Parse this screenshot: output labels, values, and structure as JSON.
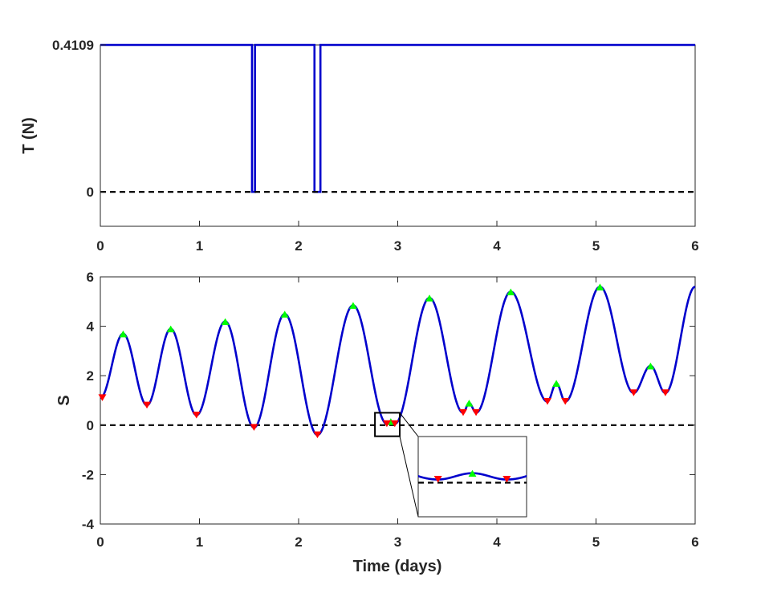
{
  "chart_data": [
    {
      "type": "line",
      "ylabel": "T (N)",
      "xlim": [
        0,
        6
      ],
      "ylim": [
        -0.0962,
        0.4109
      ],
      "xticks": [
        "0",
        "1",
        "2",
        "3",
        "4",
        "5",
        "6"
      ],
      "yticks": [
        {
          "value": 0,
          "label": "0"
        },
        {
          "value": 0.4109,
          "label": "0.4109"
        }
      ],
      "series": [
        {
          "style": "solid",
          "color": "#0000cc",
          "x": [
            0,
            1.53,
            1.53,
            1.56,
            1.56,
            2.16,
            2.16,
            2.22,
            2.22,
            6
          ],
          "y": [
            0.4109,
            0.4109,
            0,
            0,
            0.4109,
            0.4109,
            0,
            0,
            0.4109,
            0.4109
          ]
        },
        {
          "style": "dashed",
          "color": "#000000",
          "x": [
            0,
            6
          ],
          "y": [
            0,
            0
          ]
        }
      ]
    },
    {
      "type": "line",
      "xlabel": "Time (days)",
      "ylabel": "S",
      "xlim": [
        0,
        6
      ],
      "ylim": [
        -4,
        6
      ],
      "xticks": [
        "0",
        "1",
        "2",
        "3",
        "4",
        "5",
        "6"
      ],
      "yticks": [
        "-4",
        "-2",
        "0",
        "2",
        "4",
        "6"
      ],
      "curve_color": "#0000cc",
      "maxima_color": "#00ff00",
      "minima_color": "#ff0000",
      "curve_points": [
        [
          0,
          1.1
        ],
        [
          0.23,
          3.7
        ],
        [
          0.47,
          0.8
        ],
        [
          0.71,
          3.9
        ],
        [
          0.97,
          0.4
        ],
        [
          1.26,
          4.2
        ],
        [
          1.55,
          -0.1
        ],
        [
          1.86,
          4.5
        ],
        [
          2.19,
          -0.4
        ],
        [
          2.55,
          4.85
        ],
        [
          2.89,
          0.05
        ],
        [
          2.93,
          0.15
        ],
        [
          2.97,
          0.05
        ],
        [
          3.32,
          5.15
        ],
        [
          3.66,
          0.5
        ],
        [
          3.72,
          0.9
        ],
        [
          3.79,
          0.5
        ],
        [
          4.14,
          5.4
        ],
        [
          4.51,
          0.95
        ],
        [
          4.6,
          1.7
        ],
        [
          4.69,
          0.95
        ],
        [
          5.04,
          5.6
        ],
        [
          5.38,
          1.3
        ],
        [
          5.55,
          2.4
        ],
        [
          5.7,
          1.3
        ],
        [
          6,
          5.6
        ]
      ],
      "maxima": [
        [
          0.23,
          3.7
        ],
        [
          0.71,
          3.9
        ],
        [
          1.26,
          4.2
        ],
        [
          1.86,
          4.5
        ],
        [
          2.55,
          4.85
        ],
        [
          2.93,
          0.15
        ],
        [
          3.32,
          5.15
        ],
        [
          3.72,
          0.9
        ],
        [
          4.14,
          5.4
        ],
        [
          4.6,
          1.7
        ],
        [
          5.04,
          5.6
        ],
        [
          5.55,
          2.4
        ]
      ],
      "minima": [
        [
          0.02,
          1.1
        ],
        [
          0.47,
          0.8
        ],
        [
          0.97,
          0.4
        ],
        [
          1.55,
          -0.1
        ],
        [
          2.19,
          -0.4
        ],
        [
          2.89,
          0.05
        ],
        [
          2.97,
          0.05
        ],
        [
          3.66,
          0.5
        ],
        [
          3.79,
          0.5
        ],
        [
          4.51,
          0.95
        ],
        [
          4.69,
          0.95
        ],
        [
          5.38,
          1.3
        ],
        [
          5.7,
          1.3
        ]
      ],
      "reference_line": {
        "y": 0,
        "style": "dashed",
        "color": "#000000"
      },
      "inset": {
        "zoom_box": {
          "xlim": [
            2.77,
            3.02
          ],
          "ylim": [
            -0.45,
            0.5
          ]
        },
        "xlim": [
          2.867,
          2.993
        ],
        "ylim": [
          -0.54,
          0.73
        ],
        "note": "magnified view of the double minimum near day 2.9"
      }
    }
  ]
}
